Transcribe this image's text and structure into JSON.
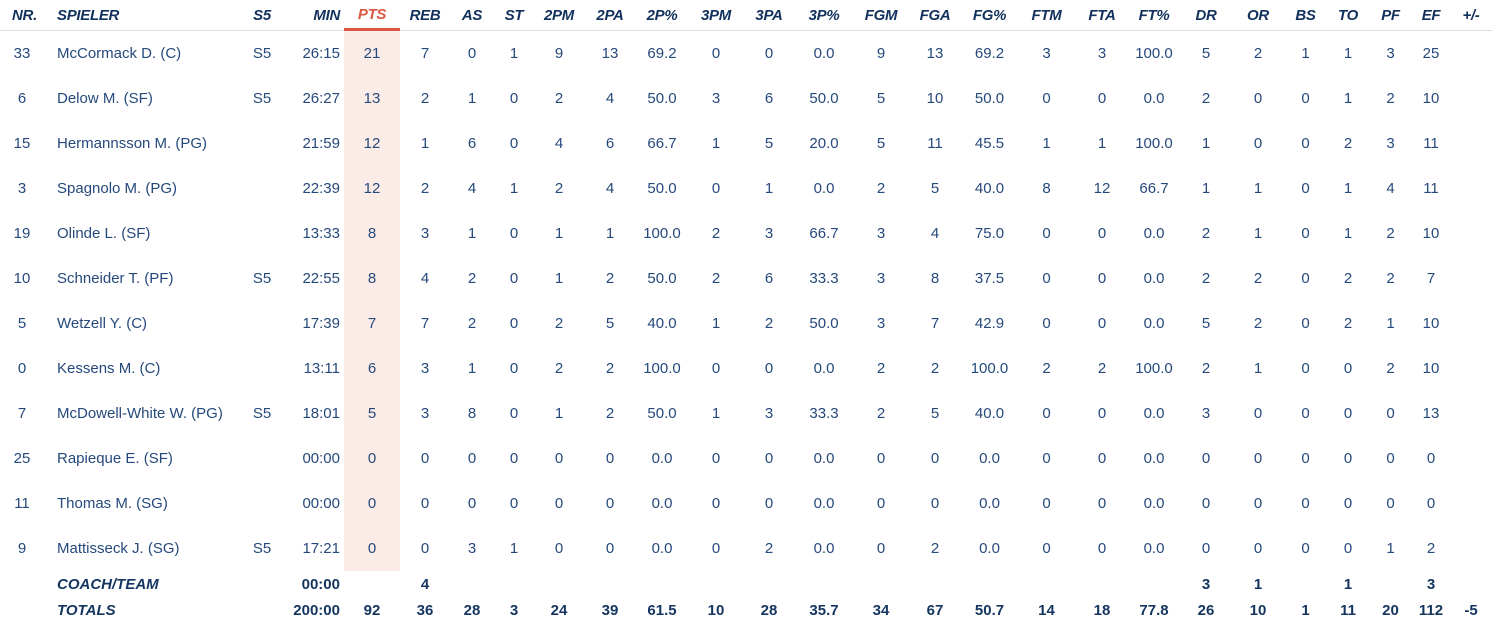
{
  "colors": {
    "header_text": "#12315c",
    "body_text": "#26497c",
    "summary_text": "#14355f",
    "accent_sort": "#dc5742",
    "pts_column_bg": "#fbece7",
    "header_divider": "#dedede",
    "background": "#ffffff"
  },
  "table": {
    "sorted_column": "PTS",
    "columns": [
      {
        "key": "nr",
        "label": "NR."
      },
      {
        "key": "spieler",
        "label": "SPIELER"
      },
      {
        "key": "s5",
        "label": "S5"
      },
      {
        "key": "min",
        "label": "MIN"
      },
      {
        "key": "pts",
        "label": "PTS"
      },
      {
        "key": "reb",
        "label": "REB"
      },
      {
        "key": "as",
        "label": "AS"
      },
      {
        "key": "st",
        "label": "ST"
      },
      {
        "key": "2pm",
        "label": "2PM"
      },
      {
        "key": "2pa",
        "label": "2PA"
      },
      {
        "key": "2pp",
        "label": "2P%"
      },
      {
        "key": "3pm",
        "label": "3PM"
      },
      {
        "key": "3pa",
        "label": "3PA"
      },
      {
        "key": "3pp",
        "label": "3P%"
      },
      {
        "key": "fgm",
        "label": "FGM"
      },
      {
        "key": "fga",
        "label": "FGA"
      },
      {
        "key": "fgp",
        "label": "FG%"
      },
      {
        "key": "ftm",
        "label": "FTM"
      },
      {
        "key": "fta",
        "label": "FTA"
      },
      {
        "key": "ftp",
        "label": "FT%"
      },
      {
        "key": "dr",
        "label": "DR"
      },
      {
        "key": "or",
        "label": "OR"
      },
      {
        "key": "bs",
        "label": "BS"
      },
      {
        "key": "to",
        "label": "TO"
      },
      {
        "key": "pf",
        "label": "PF"
      },
      {
        "key": "ef",
        "label": "EF"
      },
      {
        "key": "pm",
        "label": "+/-"
      }
    ],
    "rows": [
      [
        "33",
        "McCormack D. (C)",
        "S5",
        "26:15",
        "21",
        "7",
        "0",
        "1",
        "9",
        "13",
        "69.2",
        "0",
        "0",
        "0.0",
        "9",
        "13",
        "69.2",
        "3",
        "3",
        "100.0",
        "5",
        "2",
        "1",
        "1",
        "3",
        "25",
        ""
      ],
      [
        "6",
        "Delow M. (SF)",
        "S5",
        "26:27",
        "13",
        "2",
        "1",
        "0",
        "2",
        "4",
        "50.0",
        "3",
        "6",
        "50.0",
        "5",
        "10",
        "50.0",
        "0",
        "0",
        "0.0",
        "2",
        "0",
        "0",
        "1",
        "2",
        "10",
        ""
      ],
      [
        "15",
        "Hermannsson M. (PG)",
        "",
        "21:59",
        "12",
        "1",
        "6",
        "0",
        "4",
        "6",
        "66.7",
        "1",
        "5",
        "20.0",
        "5",
        "11",
        "45.5",
        "1",
        "1",
        "100.0",
        "1",
        "0",
        "0",
        "2",
        "3",
        "11",
        ""
      ],
      [
        "3",
        "Spagnolo M. (PG)",
        "",
        "22:39",
        "12",
        "2",
        "4",
        "1",
        "2",
        "4",
        "50.0",
        "0",
        "1",
        "0.0",
        "2",
        "5",
        "40.0",
        "8",
        "12",
        "66.7",
        "1",
        "1",
        "0",
        "1",
        "4",
        "11",
        ""
      ],
      [
        "19",
        "Olinde L. (SF)",
        "",
        "13:33",
        "8",
        "3",
        "1",
        "0",
        "1",
        "1",
        "100.0",
        "2",
        "3",
        "66.7",
        "3",
        "4",
        "75.0",
        "0",
        "0",
        "0.0",
        "2",
        "1",
        "0",
        "1",
        "2",
        "10",
        ""
      ],
      [
        "10",
        "Schneider T. (PF)",
        "S5",
        "22:55",
        "8",
        "4",
        "2",
        "0",
        "1",
        "2",
        "50.0",
        "2",
        "6",
        "33.3",
        "3",
        "8",
        "37.5",
        "0",
        "0",
        "0.0",
        "2",
        "2",
        "0",
        "2",
        "2",
        "7",
        ""
      ],
      [
        "5",
        "Wetzell Y. (C)",
        "",
        "17:39",
        "7",
        "7",
        "2",
        "0",
        "2",
        "5",
        "40.0",
        "1",
        "2",
        "50.0",
        "3",
        "7",
        "42.9",
        "0",
        "0",
        "0.0",
        "5",
        "2",
        "0",
        "2",
        "1",
        "10",
        ""
      ],
      [
        "0",
        "Kessens M. (C)",
        "",
        "13:11",
        "6",
        "3",
        "1",
        "0",
        "2",
        "2",
        "100.0",
        "0",
        "0",
        "0.0",
        "2",
        "2",
        "100.0",
        "2",
        "2",
        "100.0",
        "2",
        "1",
        "0",
        "0",
        "2",
        "10",
        ""
      ],
      [
        "7",
        "McDowell-White W. (PG)",
        "S5",
        "18:01",
        "5",
        "3",
        "8",
        "0",
        "1",
        "2",
        "50.0",
        "1",
        "3",
        "33.3",
        "2",
        "5",
        "40.0",
        "0",
        "0",
        "0.0",
        "3",
        "0",
        "0",
        "0",
        "0",
        "13",
        ""
      ],
      [
        "25",
        "Rapieque E. (SF)",
        "",
        "00:00",
        "0",
        "0",
        "0",
        "0",
        "0",
        "0",
        "0.0",
        "0",
        "0",
        "0.0",
        "0",
        "0",
        "0.0",
        "0",
        "0",
        "0.0",
        "0",
        "0",
        "0",
        "0",
        "0",
        "0",
        ""
      ],
      [
        "11",
        "Thomas M. (SG)",
        "",
        "00:00",
        "0",
        "0",
        "0",
        "0",
        "0",
        "0",
        "0.0",
        "0",
        "0",
        "0.0",
        "0",
        "0",
        "0.0",
        "0",
        "0",
        "0.0",
        "0",
        "0",
        "0",
        "0",
        "0",
        "0",
        ""
      ],
      [
        "9",
        "Mattisseck J. (SG)",
        "S5",
        "17:21",
        "0",
        "0",
        "3",
        "1",
        "0",
        "0",
        "0.0",
        "0",
        "2",
        "0.0",
        "0",
        "2",
        "0.0",
        "0",
        "0",
        "0.0",
        "0",
        "0",
        "0",
        "0",
        "1",
        "2",
        ""
      ]
    ],
    "coach_team_row": [
      "",
      "COACH/TEAM",
      "",
      "00:00",
      "",
      "4",
      "",
      "",
      "",
      "",
      "",
      "",
      "",
      "",
      "",
      "",
      "",
      "",
      "",
      "",
      "3",
      "1",
      "",
      "1",
      "",
      "3",
      ""
    ],
    "totals_row": [
      "",
      "TOTALS",
      "",
      "200:00",
      "92",
      "36",
      "28",
      "3",
      "24",
      "39",
      "61.5",
      "10",
      "28",
      "35.7",
      "34",
      "67",
      "50.7",
      "14",
      "18",
      "77.8",
      "26",
      "10",
      "1",
      "11",
      "20",
      "112",
      "-5"
    ]
  }
}
